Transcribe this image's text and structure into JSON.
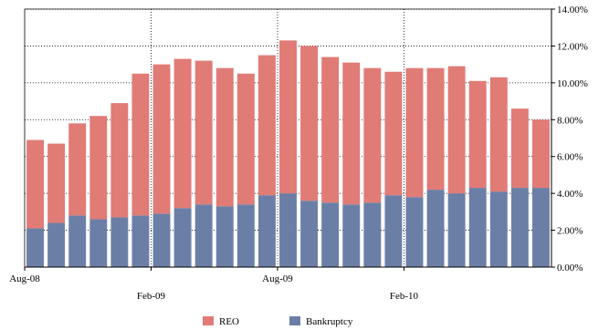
{
  "chart_data": {
    "type": "bar",
    "stacked": true,
    "title": "",
    "xlabel": "",
    "ylabel": "",
    "ylim": [
      0,
      14
    ],
    "y_ticks": [
      "0.00%",
      "2.00%",
      "4.00%",
      "6.00%",
      "8.00%",
      "10.00%",
      "12.00%",
      "14.00%"
    ],
    "y_axis_side": "right",
    "grid": "dotted",
    "legend_position": "bottom",
    "x_tick_labels": [
      {
        "index": 0,
        "label": "Aug-08",
        "row": 1
      },
      {
        "index": 6,
        "label": "Feb-09",
        "row": 2
      },
      {
        "index": 12,
        "label": "Aug-09",
        "row": 1
      },
      {
        "index": 18,
        "label": "Feb-10",
        "row": 2
      }
    ],
    "categories": [
      "1",
      "2",
      "3",
      "4",
      "5",
      "6",
      "7",
      "8",
      "9",
      "10",
      "11",
      "12",
      "13",
      "14",
      "15",
      "16",
      "17",
      "18",
      "19",
      "20",
      "21",
      "22",
      "23",
      "24",
      "25"
    ],
    "series": [
      {
        "name": "Bankruptcy",
        "color": "#6b7fa6",
        "values": [
          2.1,
          2.4,
          2.8,
          2.6,
          2.7,
          2.8,
          2.9,
          3.2,
          3.4,
          3.3,
          3.4,
          3.9,
          4.0,
          3.6,
          3.5,
          3.4,
          3.5,
          3.9,
          3.8,
          4.2,
          4.0,
          4.3,
          4.1,
          4.3,
          4.3
        ]
      },
      {
        "name": "REO",
        "color": "#e07b76",
        "values": [
          4.8,
          4.3,
          5.0,
          5.6,
          6.2,
          7.7,
          8.1,
          8.1,
          7.8,
          7.5,
          7.1,
          7.6,
          8.3,
          8.4,
          7.9,
          7.7,
          7.3,
          6.7,
          7.0,
          6.6,
          6.9,
          5.8,
          6.2,
          4.3,
          3.7
        ]
      }
    ],
    "legend": [
      {
        "name": "REO",
        "color": "#e07b76"
      },
      {
        "name": "Bankruptcy",
        "color": "#6b7fa6"
      }
    ]
  }
}
